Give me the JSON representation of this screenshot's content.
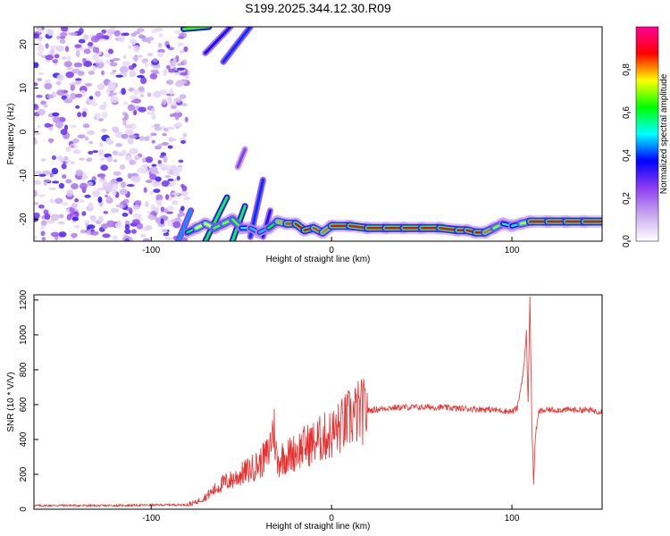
{
  "title": "S199.2025.344.12.30.R09",
  "chart_data": [
    {
      "type": "heatmap",
      "xlabel": "Height of straight line (km)",
      "ylabel": "Frequency (Hz)",
      "xlim": [
        -165,
        150
      ],
      "ylim": [
        -25,
        24
      ],
      "x_ticks": [
        -100,
        0,
        100
      ],
      "y_ticks": [
        -20,
        -10,
        0,
        10,
        20
      ],
      "grid": false,
      "colorbar": {
        "label": "Normalized spectral amplitude",
        "range": [
          0,
          1
        ],
        "ticks": [
          0.0,
          0.2,
          0.4,
          0.6,
          0.8
        ],
        "colors": [
          "#ffffff",
          "#c8a8ee",
          "#8c3cf0",
          "#0000ff",
          "#00ffff",
          "#00ff00",
          "#ffff00",
          "#ff0000",
          "#ff0099"
        ]
      },
      "noise_region": {
        "x": [
          -165,
          -80
        ],
        "y": [
          -25,
          24
        ],
        "amplitude": [
          0.05,
          0.35
        ]
      },
      "ridge": {
        "x": [
          -80,
          -75,
          -70,
          -65,
          -60,
          -55,
          -50,
          -45,
          -40,
          -35,
          -30,
          -25,
          -20,
          -15,
          -10,
          -5,
          0,
          10,
          20,
          30,
          40,
          50,
          60,
          70,
          75,
          80,
          85,
          90,
          95,
          100,
          105,
          110,
          120,
          130,
          140,
          150
        ],
        "freq": [
          -23,
          -22,
          -21,
          -22,
          -21,
          -20,
          -22,
          -22,
          -23,
          -22,
          -20.5,
          -21,
          -21,
          -22.5,
          -22,
          -23,
          -21.5,
          -21.5,
          -22,
          -22,
          -22,
          -22,
          -22,
          -22.5,
          -22.5,
          -23,
          -23,
          -22,
          -21,
          -21.5,
          -21,
          -20.5,
          -20.5,
          -20.5,
          -20.5,
          -20.5
        ],
        "amplitude": [
          0.5,
          0.7,
          0.8,
          0.7,
          0.65,
          0.75,
          0.6,
          0.5,
          0.45,
          0.5,
          0.75,
          0.85,
          0.85,
          0.9,
          0.9,
          0.8,
          0.85,
          0.9,
          0.9,
          0.9,
          0.9,
          0.9,
          0.9,
          0.9,
          0.85,
          0.9,
          0.85,
          0.8,
          0.6,
          0.5,
          0.6,
          0.85,
          0.9,
          0.9,
          0.9,
          0.9
        ]
      },
      "branches": [
        {
          "x": [
            -82,
            -68
          ],
          "freq": [
            23.5,
            24
          ],
          "amplitude": 0.65
        },
        {
          "x": [
            -70,
            -56
          ],
          "freq": [
            18,
            24
          ],
          "amplitude": 0.35
        },
        {
          "x": [
            -60,
            -45
          ],
          "freq": [
            16,
            24
          ],
          "amplitude": 0.4
        },
        {
          "x": [
            -52,
            -48
          ],
          "freq": [
            -8,
            -4
          ],
          "amplitude": 0.25
        },
        {
          "x": [
            -85,
            -78
          ],
          "freq": [
            -25,
            -18
          ],
          "amplitude": 0.45
        },
        {
          "x": [
            -70,
            -58
          ],
          "freq": [
            -25,
            -15
          ],
          "amplitude": 0.6
        },
        {
          "x": [
            -55,
            -48
          ],
          "freq": [
            -25,
            -17
          ],
          "amplitude": 0.6
        },
        {
          "x": [
            -45,
            -38
          ],
          "freq": [
            -24,
            -11
          ],
          "amplitude": 0.4
        },
        {
          "x": [
            -38,
            -34
          ],
          "freq": [
            -24,
            -18
          ],
          "amplitude": 0.35
        }
      ]
    },
    {
      "type": "line",
      "xlabel": "Height of straight line (km)",
      "ylabel": "SNR (10 * V/V)",
      "xlim": [
        -165,
        150
      ],
      "ylim": [
        0,
        1230
      ],
      "x_ticks": [
        -100,
        0,
        100
      ],
      "y_ticks": [
        0,
        200,
        400,
        600,
        800,
        1000,
        1200
      ],
      "grid": false,
      "line_color": "#e8302e",
      "series": [
        {
          "x": [
            -165,
            -150,
            -130,
            -110,
            -90,
            -80,
            -75,
            -70,
            -65,
            -60,
            -55,
            -50,
            -45,
            -40,
            -35,
            -32,
            -30,
            -28,
            -25,
            -20,
            -15,
            -10,
            -5,
            0,
            5,
            10,
            15,
            20,
            30,
            40,
            50,
            60,
            70,
            80,
            90,
            95,
            100,
            103,
            105,
            107,
            108,
            109,
            110,
            111,
            112,
            113,
            115,
            120,
            130,
            140,
            150
          ],
          "y": [
            20,
            22,
            20,
            22,
            25,
            25,
            40,
            70,
            110,
            150,
            170,
            200,
            230,
            260,
            320,
            480,
            250,
            300,
            300,
            330,
            360,
            380,
            410,
            430,
            470,
            520,
            555,
            565,
            580,
            585,
            585,
            585,
            578,
            575,
            570,
            565,
            560,
            580,
            700,
            850,
            1020,
            600,
            1230,
            500,
            150,
            420,
            560,
            570,
            570,
            570,
            560
          ]
        }
      ]
    }
  ]
}
